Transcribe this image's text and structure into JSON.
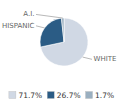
{
  "chart_data": {
    "type": "pie",
    "categories": [
      "WHITE",
      "HISPANIC",
      "A.I."
    ],
    "values": [
      71.7,
      26.7,
      1.7
    ],
    "value_labels": [
      "71.7%",
      "26.7%",
      "1.7%"
    ],
    "colors": [
      "#d0d8e4",
      "#2b5c85",
      "#9aafc0"
    ],
    "legend": "bottom"
  }
}
